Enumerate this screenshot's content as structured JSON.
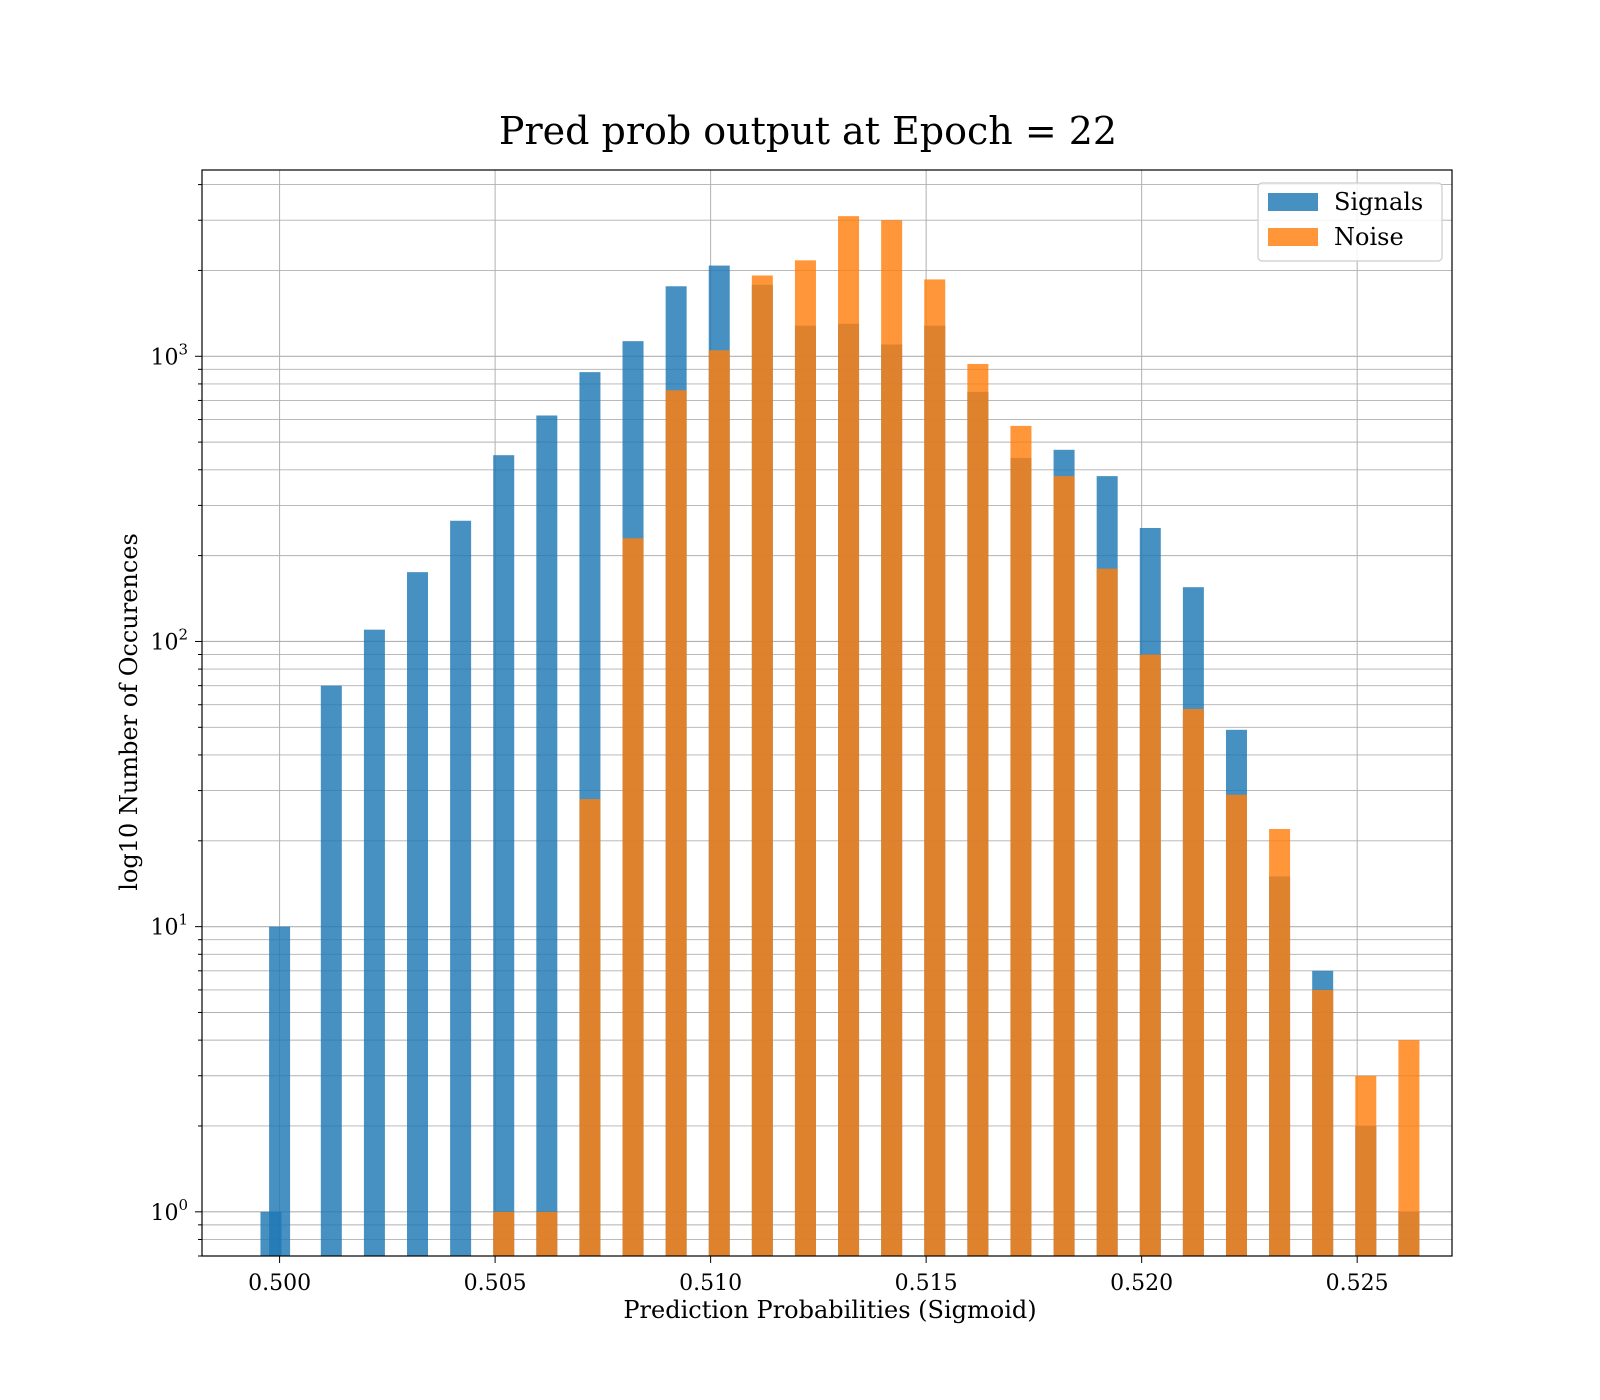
{
  "chart_data": {
    "type": "bar",
    "title": "Pred prob output at Epoch = 22",
    "xlabel": "Prediction Probabilities (Sigmoid)",
    "ylabel": "log10 Number of Occurences",
    "y_scale": "log",
    "xlim": [
      0.4982,
      0.5272
    ],
    "ylim": [
      0.7,
      4500
    ],
    "x_ticks": [
      "0.500",
      "0.505",
      "0.510",
      "0.515",
      "0.520",
      "0.525"
    ],
    "y_ticks": [
      {
        "value": 1,
        "base": "10",
        "exp": "0"
      },
      {
        "value": 10,
        "base": "10",
        "exp": "1"
      },
      {
        "value": 100,
        "base": "10",
        "exp": "2"
      },
      {
        "value": 1000,
        "base": "10",
        "exp": "3"
      }
    ],
    "grid": true,
    "legend_position": "top-right",
    "colors": {
      "signals": "#1f77b4",
      "noise": "#ff7f0e"
    },
    "series": [
      {
        "name": "Signals",
        "color": "#1f77b4",
        "points": [
          {
            "x": 0.4998,
            "y": 1
          },
          {
            "x": 0.5,
            "y": 10
          },
          {
            "x": 0.5012,
            "y": 70
          },
          {
            "x": 0.5022,
            "y": 110
          },
          {
            "x": 0.5032,
            "y": 175
          },
          {
            "x": 0.5042,
            "y": 265
          },
          {
            "x": 0.5052,
            "y": 450
          },
          {
            "x": 0.5062,
            "y": 620
          },
          {
            "x": 0.5072,
            "y": 880
          },
          {
            "x": 0.5082,
            "y": 1130
          },
          {
            "x": 0.5092,
            "y": 1760
          },
          {
            "x": 0.5102,
            "y": 2080
          },
          {
            "x": 0.5112,
            "y": 1780
          },
          {
            "x": 0.5122,
            "y": 1280
          },
          {
            "x": 0.5132,
            "y": 1300
          },
          {
            "x": 0.5142,
            "y": 1100
          },
          {
            "x": 0.5152,
            "y": 1280
          },
          {
            "x": 0.5162,
            "y": 750
          },
          {
            "x": 0.5172,
            "y": 440
          },
          {
            "x": 0.5182,
            "y": 470
          },
          {
            "x": 0.5192,
            "y": 380
          },
          {
            "x": 0.5202,
            "y": 250
          },
          {
            "x": 0.5212,
            "y": 155
          },
          {
            "x": 0.5222,
            "y": 49
          },
          {
            "x": 0.5232,
            "y": 15
          },
          {
            "x": 0.5242,
            "y": 7
          },
          {
            "x": 0.5252,
            "y": 2
          },
          {
            "x": 0.5262,
            "y": 1
          }
        ]
      },
      {
        "name": "Noise",
        "color": "#ff7f0e",
        "points": [
          {
            "x": 0.5052,
            "y": 1
          },
          {
            "x": 0.5062,
            "y": 1
          },
          {
            "x": 0.5072,
            "y": 28
          },
          {
            "x": 0.5082,
            "y": 230
          },
          {
            "x": 0.5092,
            "y": 760
          },
          {
            "x": 0.5102,
            "y": 1050
          },
          {
            "x": 0.5112,
            "y": 1920
          },
          {
            "x": 0.5122,
            "y": 2170
          },
          {
            "x": 0.5132,
            "y": 3100
          },
          {
            "x": 0.5142,
            "y": 3000
          },
          {
            "x": 0.5152,
            "y": 1860
          },
          {
            "x": 0.5162,
            "y": 940
          },
          {
            "x": 0.5172,
            "y": 570
          },
          {
            "x": 0.5182,
            "y": 380
          },
          {
            "x": 0.5192,
            "y": 180
          },
          {
            "x": 0.5202,
            "y": 90
          },
          {
            "x": 0.5212,
            "y": 58
          },
          {
            "x": 0.5222,
            "y": 29
          },
          {
            "x": 0.5232,
            "y": 22
          },
          {
            "x": 0.5242,
            "y": 6
          },
          {
            "x": 0.5252,
            "y": 3
          },
          {
            "x": 0.5262,
            "y": 4
          }
        ]
      }
    ]
  }
}
